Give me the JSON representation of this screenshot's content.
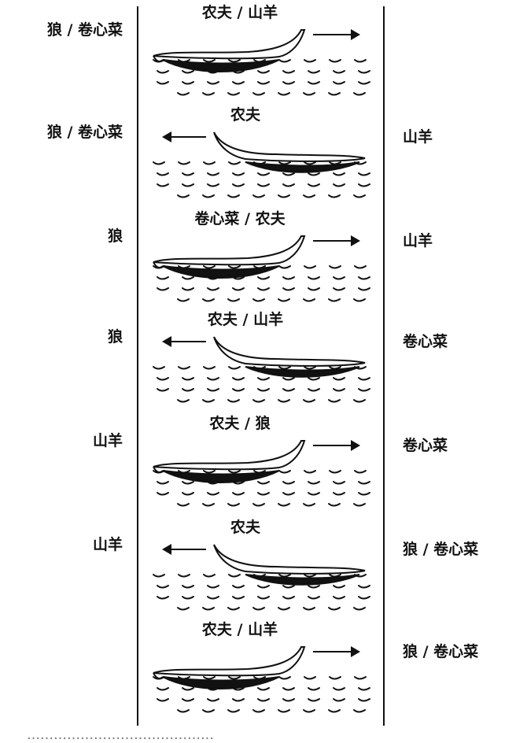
{
  "steps": [
    {
      "left": "狼 / 卷心菜",
      "boat": "农夫 / 山羊",
      "right": "",
      "direction": "right"
    },
    {
      "left": "狼 / 卷心菜",
      "boat": "农夫",
      "right": "山羊",
      "direction": "left"
    },
    {
      "left": "狼",
      "boat": "卷心菜 / 农夫",
      "right": "山羊",
      "direction": "right"
    },
    {
      "left": "狼",
      "boat": "农夫 / 山羊",
      "right": "卷心菜",
      "direction": "left"
    },
    {
      "left": "山羊",
      "boat": "农夫 / 狼",
      "right": "卷心菜",
      "direction": "right"
    },
    {
      "left": "山羊",
      "boat": "农夫",
      "right": "狼 / 卷心菜",
      "direction": "left"
    },
    {
      "left": "",
      "boat": "农夫 / 山羊",
      "right": "狼 / 卷心菜",
      "direction": "right"
    }
  ],
  "caption": "……………………………………"
}
